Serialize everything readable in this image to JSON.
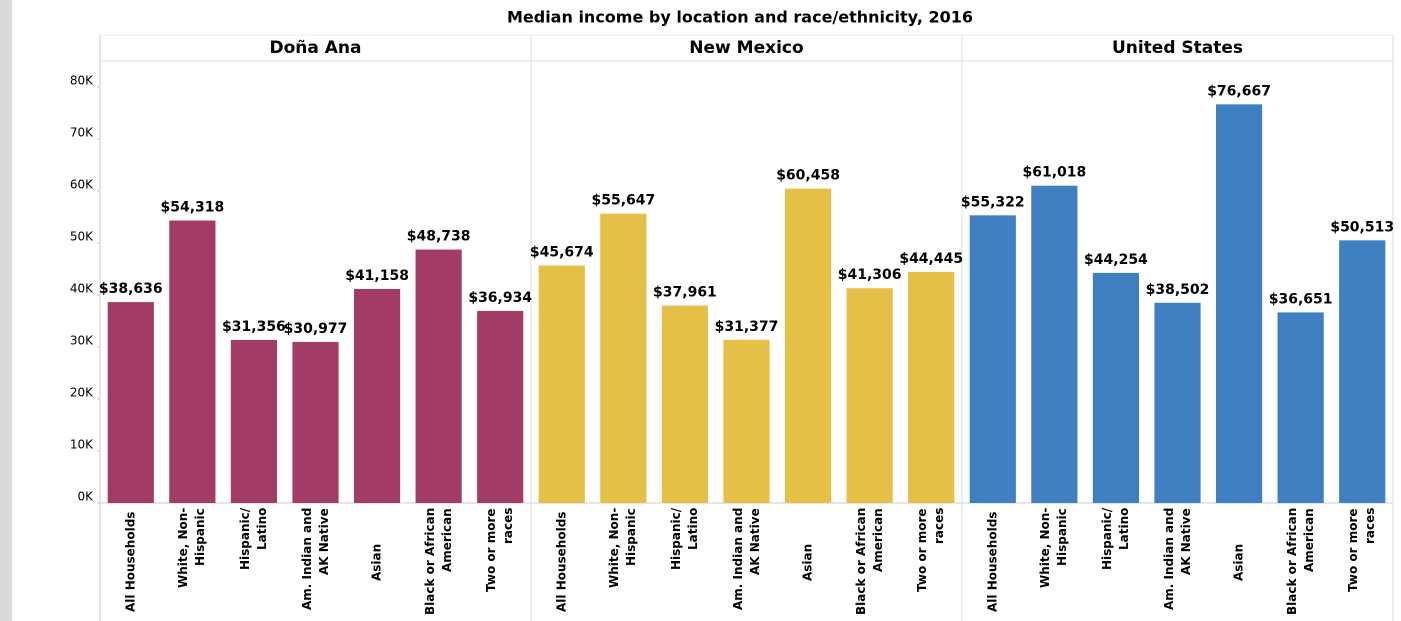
{
  "chart_data": {
    "type": "bar",
    "title": "Median income by location and race/ethnicity, 2016",
    "categories": [
      "All Households",
      "White, Non-Hispanic",
      "Hispanic/ Latino",
      "Am. Indian and AK Native",
      "Asian",
      "Black or African American",
      "Two or more races"
    ],
    "ylim": [
      0,
      85000
    ],
    "yticks": [
      {
        "value": 0,
        "label": "0K"
      },
      {
        "value": 10000,
        "label": "10K"
      },
      {
        "value": 20000,
        "label": "20K"
      },
      {
        "value": 30000,
        "label": "30K"
      },
      {
        "value": 40000,
        "label": "40K"
      },
      {
        "value": 50000,
        "label": "50K"
      },
      {
        "value": 60000,
        "label": "60K"
      },
      {
        "value": 70000,
        "label": "70K"
      },
      {
        "value": 80000,
        "label": "80K"
      }
    ],
    "series": [
      {
        "name": "Doña Ana",
        "color": "#a23b66",
        "values": [
          38636,
          54318,
          31356,
          30977,
          41158,
          48738,
          36934
        ],
        "value_labels": [
          "$38,636",
          "$54,318",
          "$31,356",
          "$30,977",
          "$41,158",
          "$48,738",
          "$36,934"
        ]
      },
      {
        "name": "New Mexico",
        "color": "#e6bf47",
        "values": [
          45674,
          55647,
          37961,
          31377,
          60458,
          41306,
          44445
        ],
        "value_labels": [
          "$45,674",
          "$55,647",
          "$37,961",
          "$31,377",
          "$60,458",
          "$41,306",
          "$44,445"
        ]
      },
      {
        "name": "United States",
        "color": "#3e7fc1",
        "values": [
          55322,
          61018,
          44254,
          38502,
          76667,
          36651,
          50513
        ],
        "value_labels": [
          "$55,322",
          "$61,018",
          "$44,254",
          "$38,502",
          "$76,667",
          "$36,651",
          "$50,513"
        ]
      }
    ]
  }
}
